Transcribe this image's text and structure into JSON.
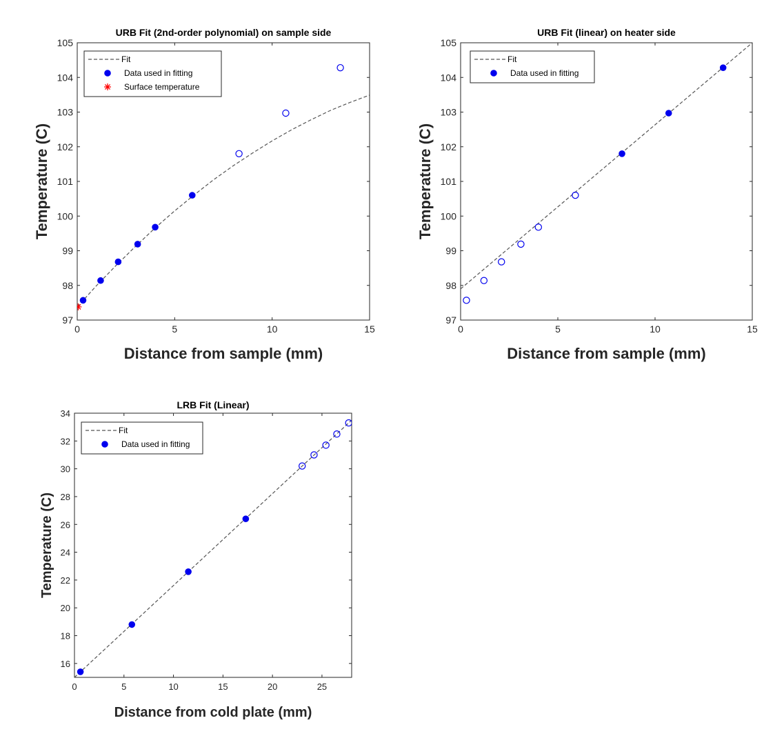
{
  "figure": {
    "background": "#ffffff"
  },
  "chart_data": [
    {
      "type": "scatter",
      "title": "URB Fit (2nd-order polynomial) on sample side",
      "xlabel": "Distance from sample (mm)",
      "ylabel": "Temperature (C)",
      "xlim": [
        0,
        15
      ],
      "ylim": [
        97,
        105
      ],
      "xticks": [
        0,
        5,
        10,
        15
      ],
      "yticks": [
        97,
        98,
        99,
        100,
        101,
        102,
        103,
        104,
        105
      ],
      "grid": false,
      "legend_position": "top-left",
      "legend": [
        {
          "label": "Fit",
          "marker": "dashed-line",
          "color": "#555555"
        },
        {
          "label": "Data used in fitting",
          "marker": "filled-circle",
          "color": "#0000ee"
        },
        {
          "label": "Surface temperature",
          "marker": "asterisk",
          "color": "#ff0000"
        }
      ],
      "series": [
        {
          "name": "Fit",
          "kind": "curve",
          "style": "dashed",
          "color": "#555555",
          "x": [
            0,
            1,
            2,
            3,
            4,
            5,
            6,
            7,
            8,
            9,
            10,
            11,
            12,
            13,
            14,
            15
          ],
          "y": [
            97.38,
            98.0,
            98.58,
            99.13,
            99.66,
            100.15,
            100.61,
            101.05,
            101.45,
            101.82,
            102.17,
            102.49,
            102.78,
            103.05,
            103.28,
            103.49
          ]
        },
        {
          "name": "Data used in fitting",
          "kind": "points",
          "marker": "filled-circle",
          "color": "#0000ee",
          "x": [
            0.3,
            1.2,
            2.1,
            3.1,
            4.0,
            5.9
          ],
          "y": [
            97.57,
            98.14,
            98.68,
            99.19,
            99.68,
            100.6
          ]
        },
        {
          "kind": "points",
          "marker": "open-circle",
          "color": "#0000ee",
          "x": [
            8.3,
            10.7,
            13.5
          ],
          "y": [
            101.8,
            102.97,
            104.28
          ]
        },
        {
          "name": "Surface temperature",
          "kind": "points",
          "marker": "asterisk",
          "color": "#ff0000",
          "x": [
            0.05
          ],
          "y": [
            97.38
          ]
        }
      ]
    },
    {
      "type": "scatter",
      "title": "URB Fit (linear) on heater side",
      "xlabel": "Distance from sample (mm)",
      "ylabel": "Temperature (C)",
      "xlim": [
        0,
        15
      ],
      "ylim": [
        97,
        105
      ],
      "xticks": [
        0,
        5,
        10,
        15
      ],
      "yticks": [
        97,
        98,
        99,
        100,
        101,
        102,
        103,
        104,
        105
      ],
      "grid": false,
      "legend_position": "top-left",
      "legend": [
        {
          "label": "Fit",
          "marker": "dashed-line",
          "color": "#555555"
        },
        {
          "label": "Data used in fitting",
          "marker": "filled-circle",
          "color": "#0000ee"
        }
      ],
      "series": [
        {
          "name": "Fit",
          "kind": "curve",
          "style": "dashed",
          "color": "#555555",
          "x": [
            0,
            15
          ],
          "y": [
            97.9,
            105.0
          ]
        },
        {
          "kind": "points",
          "marker": "open-circle",
          "color": "#0000ee",
          "x": [
            0.3,
            1.2,
            2.1,
            3.1,
            4.0,
            5.9
          ],
          "y": [
            97.57,
            98.14,
            98.68,
            99.19,
            99.68,
            100.6
          ]
        },
        {
          "name": "Data used in fitting",
          "kind": "points",
          "marker": "filled-circle",
          "color": "#0000ee",
          "x": [
            8.3,
            10.7,
            13.5
          ],
          "y": [
            101.8,
            102.97,
            104.28
          ]
        }
      ]
    },
    {
      "type": "scatter",
      "title": "LRB Fit (Linear)",
      "xlabel": "Distance from cold plate (mm)",
      "ylabel": "Temperature (C)",
      "xlim": [
        0,
        28
      ],
      "ylim": [
        15,
        34
      ],
      "xticks": [
        0,
        5,
        10,
        15,
        20,
        25
      ],
      "yticks": [
        16,
        18,
        20,
        22,
        24,
        26,
        28,
        30,
        32,
        34
      ],
      "grid": false,
      "legend_position": "top-left",
      "legend": [
        {
          "label": "Fit",
          "marker": "dashed-line",
          "color": "#555555"
        },
        {
          "label": "Data used in fitting",
          "marker": "filled-circle",
          "color": "#0000ee"
        }
      ],
      "series": [
        {
          "name": "Fit",
          "kind": "curve",
          "style": "dashed",
          "color": "#555555",
          "x": [
            0,
            28
          ],
          "y": [
            15.0,
            33.5
          ]
        },
        {
          "name": "Data used in fitting",
          "kind": "points",
          "marker": "filled-circle",
          "color": "#0000ee",
          "x": [
            0.6,
            5.8,
            11.5,
            17.3
          ],
          "y": [
            15.4,
            18.8,
            22.6,
            26.4
          ]
        },
        {
          "kind": "points",
          "marker": "open-circle",
          "color": "#0000ee",
          "x": [
            23.0,
            24.2,
            25.4,
            26.5,
            27.7
          ],
          "y": [
            30.2,
            31.0,
            31.7,
            32.5,
            33.3
          ]
        }
      ]
    }
  ]
}
